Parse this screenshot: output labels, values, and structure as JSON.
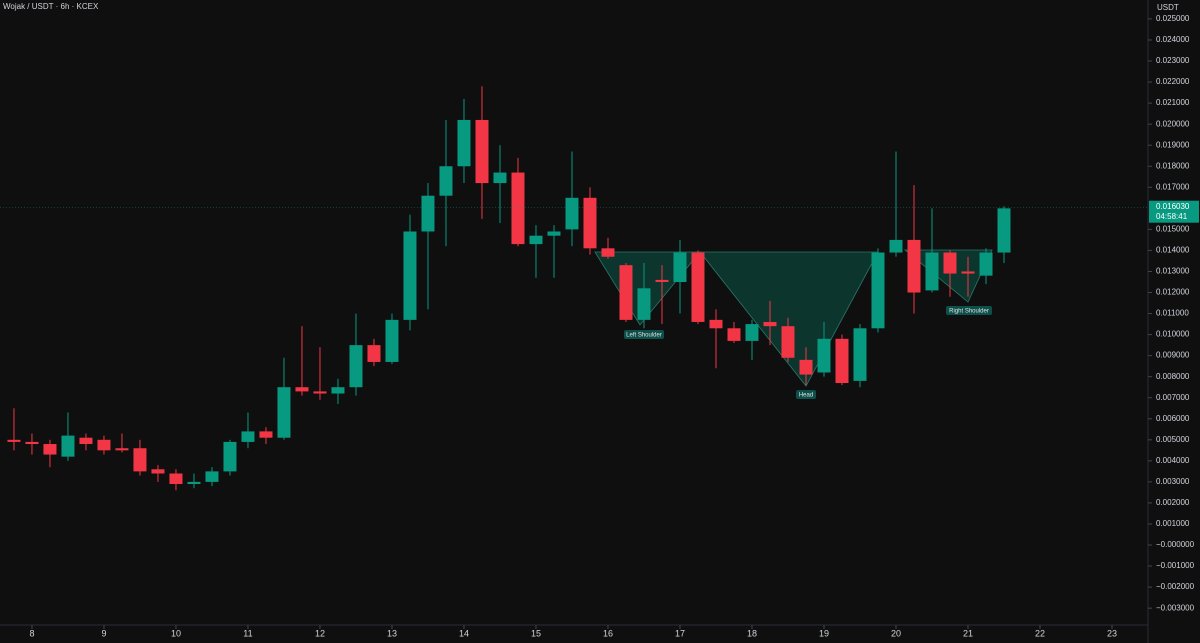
{
  "chart_data": {
    "type": "candlestick",
    "title": "Wojak / USDT · 6h · KCEX",
    "y_axis_label": "USDT",
    "up_color": "#089981",
    "down_color": "#f23645",
    "x": [
      7.75,
      8.0,
      8.25,
      8.5,
      8.75,
      9.0,
      9.25,
      9.5,
      9.75,
      10.0,
      10.25,
      10.5,
      10.75,
      11.0,
      11.25,
      11.5,
      11.75,
      12.0,
      12.25,
      12.5,
      12.75,
      13.0,
      13.25,
      13.5,
      13.75,
      14.0,
      14.25,
      14.5,
      14.75,
      15.0,
      15.25,
      15.5,
      15.75,
      16.0,
      16.25,
      16.5,
      16.75,
      17.0,
      17.25,
      17.5,
      17.75,
      18.0,
      18.25,
      18.5,
      18.75,
      19.0,
      19.25,
      19.5,
      19.75,
      20.0,
      20.25,
      20.5,
      20.75,
      21.0,
      21.25,
      21.5
    ],
    "open": [
      0.005,
      0.0049,
      0.0048,
      0.0042,
      0.0051,
      0.005,
      0.0046,
      0.0046,
      0.0036,
      0.0034,
      0.0029,
      0.003,
      0.0035,
      0.0049,
      0.0054,
      0.0051,
      0.0075,
      0.0073,
      0.0072,
      0.0075,
      0.0095,
      0.0087,
      0.0107,
      0.0149,
      0.0166,
      0.018,
      0.0202,
      0.0172,
      0.0177,
      0.0143,
      0.0147,
      0.015,
      0.0165,
      0.0141,
      0.0133,
      0.0107,
      0.0126,
      0.0125,
      0.0139,
      0.0107,
      0.0103,
      0.0097,
      0.0106,
      0.0104,
      0.0088,
      0.0082,
      0.0098,
      0.0078,
      0.0103,
      0.0139,
      0.0145,
      0.0121,
      0.0139,
      0.013,
      0.0128,
      0.0139
    ],
    "high": [
      0.0065,
      0.0053,
      0.005,
      0.0063,
      0.0053,
      0.0052,
      0.0053,
      0.005,
      0.0038,
      0.0036,
      0.0034,
      0.0037,
      0.005,
      0.0063,
      0.0056,
      0.0089,
      0.0104,
      0.0094,
      0.0079,
      0.011,
      0.0098,
      0.011,
      0.0157,
      0.0172,
      0.0202,
      0.0212,
      0.0218,
      0.019,
      0.0184,
      0.0152,
      0.0152,
      0.0187,
      0.017,
      0.0146,
      0.0134,
      0.0134,
      0.0133,
      0.0145,
      0.014,
      0.0112,
      0.0106,
      0.0107,
      0.0116,
      0.0108,
      0.0094,
      0.0106,
      0.01,
      0.0105,
      0.0141,
      0.0187,
      0.0171,
      0.016,
      0.014,
      0.0137,
      0.0141,
      0.0161
    ],
    "low": [
      0.0045,
      0.0043,
      0.0037,
      0.004,
      0.0045,
      0.0043,
      0.0044,
      0.0033,
      0.003,
      0.0026,
      0.0027,
      0.0028,
      0.0033,
      0.0046,
      0.0048,
      0.005,
      0.0071,
      0.0069,
      0.0067,
      0.0071,
      0.0085,
      0.0086,
      0.0102,
      0.0112,
      0.0142,
      0.0172,
      0.0155,
      0.0153,
      0.0142,
      0.0127,
      0.0127,
      0.0142,
      0.0138,
      0.0136,
      0.0106,
      0.0103,
      0.0105,
      0.011,
      0.0105,
      0.0084,
      0.0096,
      0.0088,
      0.0095,
      0.0087,
      0.0076,
      0.008,
      0.0076,
      0.0075,
      0.0101,
      0.0137,
      0.011,
      0.012,
      0.0118,
      0.0118,
      0.0124,
      0.0134
    ],
    "close": [
      0.0049,
      0.0048,
      0.0043,
      0.0052,
      0.0048,
      0.0045,
      0.0045,
      0.0035,
      0.0034,
      0.0029,
      0.003,
      0.0035,
      0.0049,
      0.0054,
      0.0051,
      0.0075,
      0.0073,
      0.0072,
      0.0075,
      0.0095,
      0.0087,
      0.0107,
      0.0149,
      0.0166,
      0.018,
      0.0202,
      0.0172,
      0.0177,
      0.0143,
      0.0147,
      0.0149,
      0.0165,
      0.0141,
      0.0137,
      0.0107,
      0.0122,
      0.0125,
      0.0139,
      0.0106,
      0.0103,
      0.0097,
      0.0105,
      0.0104,
      0.0089,
      0.0081,
      0.0098,
      0.0077,
      0.0103,
      0.0139,
      0.0145,
      0.012,
      0.0139,
      0.0129,
      0.0129,
      0.0139,
      0.016
    ],
    "xlim": [
      7.556,
      23.5
    ],
    "xticks": [
      8,
      9,
      10,
      11,
      12,
      13,
      14,
      15,
      16,
      17,
      18,
      19,
      20,
      21,
      22,
      23
    ],
    "ylim": [
      -0.0038,
      0.0259
    ],
    "yticks": [
      {
        "value": 0.025,
        "label": "0.025000"
      },
      {
        "value": 0.024,
        "label": "0.024000"
      },
      {
        "value": 0.023,
        "label": "0.023000"
      },
      {
        "value": 0.022,
        "label": "0.022000"
      },
      {
        "value": 0.021,
        "label": "0.021000"
      },
      {
        "value": 0.02,
        "label": "0.020000"
      },
      {
        "value": 0.019,
        "label": "0.019000"
      },
      {
        "value": 0.018,
        "label": "0.018000"
      },
      {
        "value": 0.017,
        "label": "0.017000"
      },
      {
        "value": 0.015,
        "label": "0.015000"
      },
      {
        "value": 0.014,
        "label": "0.014000"
      },
      {
        "value": 0.013,
        "label": "0.013000"
      },
      {
        "value": 0.012,
        "label": "0.012000"
      },
      {
        "value": 0.011,
        "label": "0.011000"
      },
      {
        "value": 0.01,
        "label": "0.010000"
      },
      {
        "value": 0.009,
        "label": "0.009000"
      },
      {
        "value": 0.008,
        "label": "0.008000"
      },
      {
        "value": 0.007,
        "label": "0.007000"
      },
      {
        "value": 0.006,
        "label": "0.006000"
      },
      {
        "value": 0.005,
        "label": "0.005000"
      },
      {
        "value": 0.004,
        "label": "0.004000"
      },
      {
        "value": 0.003,
        "label": "0.003000"
      },
      {
        "value": 0.002,
        "label": "0.002000"
      },
      {
        "value": 0.001,
        "label": "0.001000"
      },
      {
        "value": 0,
        "label": "−0.000000"
      },
      {
        "value": -0.001,
        "label": "−0.001000"
      },
      {
        "value": -0.002,
        "label": "−0.002000"
      },
      {
        "value": -0.003,
        "label": "−0.003000"
      }
    ],
    "last_price": {
      "value": 0.01603,
      "label": "0.016030"
    },
    "countdown": "04:58:41",
    "annotations": [
      "Left Shoulder",
      "Head",
      "Right Shoulder"
    ],
    "grid": false
  }
}
